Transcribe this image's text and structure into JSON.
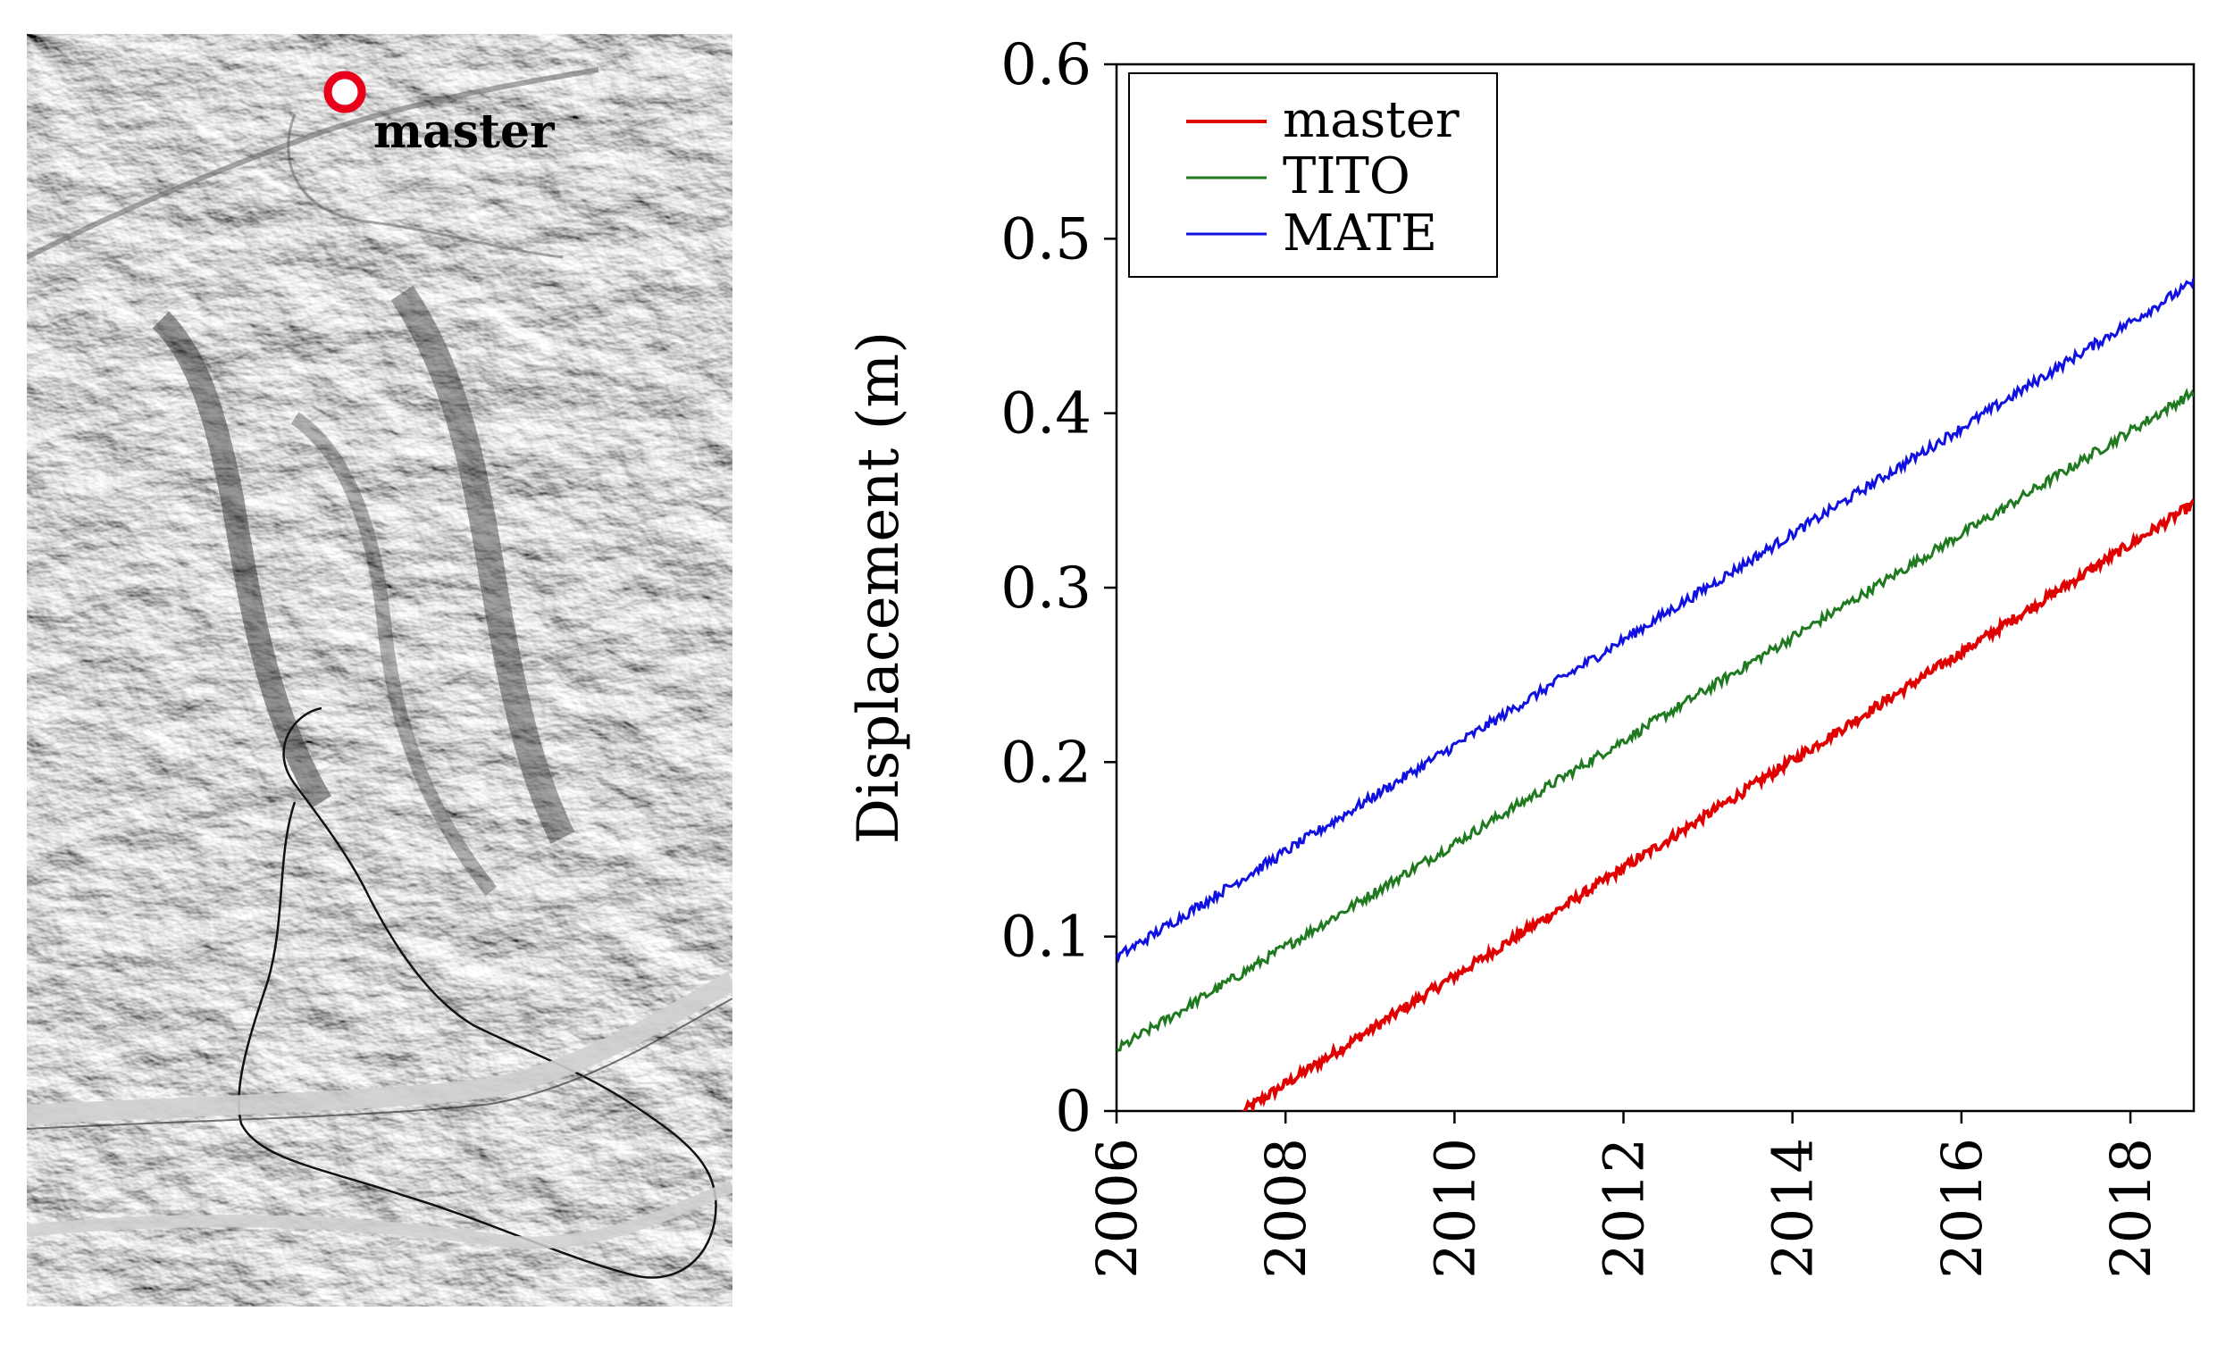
{
  "map": {
    "marker_label": "master"
  },
  "chart_data": {
    "type": "line",
    "title": "",
    "xlabel": "",
    "ylabel": "Displacement (m)",
    "xlim": [
      2006,
      2018.75
    ],
    "ylim": [
      0,
      0.6
    ],
    "x_ticks": [
      "2006",
      "2008",
      "2010",
      "2012",
      "2014",
      "2016",
      "2018"
    ],
    "y_ticks": [
      "0",
      "0.1",
      "0.2",
      "0.3",
      "0.4",
      "0.5",
      "0.6"
    ],
    "legend_position": "top-left",
    "series": [
      {
        "name": "master",
        "color": "#e00000",
        "start": [
          2007.5,
          0.0
        ],
        "end": [
          2018.75,
          0.348
        ]
      },
      {
        "name": "TITO",
        "color": "#1f7a1f",
        "start": [
          2006.0,
          0.035
        ],
        "end": [
          2018.75,
          0.412
        ]
      },
      {
        "name": "MATE",
        "color": "#1010e0",
        "start": [
          2006.0,
          0.088
        ],
        "end": [
          2018.75,
          0.475
        ]
      }
    ]
  }
}
